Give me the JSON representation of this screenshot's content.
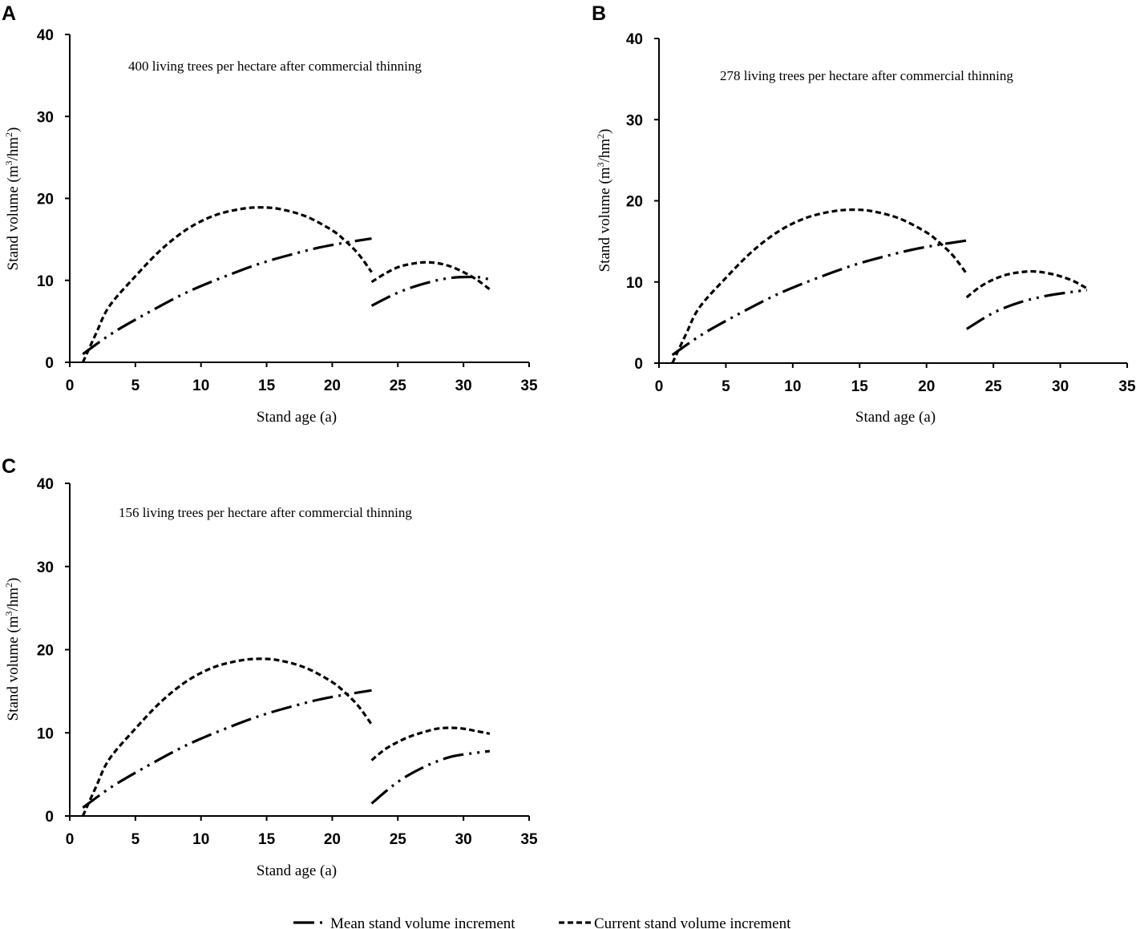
{
  "legend": {
    "mean_label": "Mean stand volume increment",
    "current_label": "Current stand volume increment"
  },
  "chart_data": [
    {
      "type": "line",
      "panel": "A",
      "annotation": "400 living trees per hectare after commercial thinning",
      "xlabel": "Stand age (a)",
      "ylabel": "Stand volume (m3/hm2)",
      "ylabel_parts": {
        "pre": "Stand volume (m",
        "sup1": "3",
        "mid": "/hm",
        "sup2": "2",
        "post": ")"
      },
      "xlim": [
        0,
        35
      ],
      "ylim": [
        0,
        40
      ],
      "xticks": [
        "0",
        "5",
        "10",
        "15",
        "20",
        "25",
        "30",
        "35"
      ],
      "yticks": [
        "0",
        "10",
        "20",
        "30",
        "40"
      ],
      "series": [
        {
          "name": "Mean stand volume increment",
          "style": "mean",
          "segments": [
            {
              "x": [
                1,
                3,
                5,
                8,
                10,
                13,
                15,
                17,
                19,
                21,
                23
              ],
              "y": [
                1,
                3.3,
                5.2,
                7.8,
                9.3,
                11.2,
                12.3,
                13.2,
                14,
                14.6,
                15.1
              ]
            },
            {
              "x": [
                23,
                25,
                27,
                29,
                31,
                32
              ],
              "y": [
                6.9,
                8.5,
                9.6,
                10.3,
                10.4,
                10.1
              ]
            }
          ]
        },
        {
          "name": "Current stand volume increment",
          "style": "current",
          "segments": [
            {
              "x": [
                1,
                2,
                3,
                5,
                7,
                9,
                11,
                13,
                14.5,
                16,
                18,
                20,
                21,
                22,
                23
              ],
              "y": [
                0,
                3.5,
                6.8,
                10.5,
                13.8,
                16.3,
                17.9,
                18.7,
                18.9,
                18.7,
                17.8,
                16.1,
                14.8,
                13.2,
                11
              ]
            },
            {
              "x": [
                23,
                24,
                25,
                26,
                27,
                28,
                29,
                30,
                31,
                32
              ],
              "y": [
                9.8,
                10.8,
                11.6,
                12,
                12.2,
                12.1,
                11.7,
                11,
                10.1,
                8.9
              ]
            }
          ]
        }
      ]
    },
    {
      "type": "line",
      "panel": "B",
      "annotation": "278 living trees per hectare after commercial thinning",
      "xlabel": "Stand age (a)",
      "ylabel": "Stand volume (m3/hm2)",
      "ylabel_parts": {
        "pre": "Stand volume (m",
        "sup1": "3",
        "mid": "/hm",
        "sup2": "2",
        "post": ")"
      },
      "xlim": [
        0,
        35
      ],
      "ylim": [
        0,
        40
      ],
      "xticks": [
        "0",
        "5",
        "10",
        "15",
        "20",
        "25",
        "30",
        "35"
      ],
      "yticks": [
        "0",
        "10",
        "20",
        "30",
        "40"
      ],
      "series": [
        {
          "name": "Mean stand volume increment",
          "style": "mean",
          "segments": [
            {
              "x": [
                1,
                3,
                5,
                8,
                10,
                13,
                15,
                17,
                19,
                21,
                23
              ],
              "y": [
                1,
                3.3,
                5.2,
                7.8,
                9.3,
                11.2,
                12.3,
                13.2,
                14,
                14.6,
                15.1
              ]
            },
            {
              "x": [
                23,
                25,
                27,
                29,
                31,
                32
              ],
              "y": [
                4.2,
                6.2,
                7.5,
                8.3,
                8.8,
                9
              ]
            }
          ]
        },
        {
          "name": "Current stand volume increment",
          "style": "current",
          "segments": [
            {
              "x": [
                1,
                2,
                3,
                5,
                7,
                9,
                11,
                13,
                14.5,
                16,
                18,
                20,
                21,
                22,
                23
              ],
              "y": [
                0,
                3.5,
                6.8,
                10.5,
                13.8,
                16.3,
                17.9,
                18.7,
                18.9,
                18.7,
                17.8,
                16.1,
                14.8,
                13.2,
                11
              ]
            },
            {
              "x": [
                23,
                24,
                25,
                26,
                27,
                28,
                29,
                30,
                31,
                32
              ],
              "y": [
                8.1,
                9.4,
                10.3,
                10.9,
                11.2,
                11.3,
                11.1,
                10.7,
                10.1,
                9.2
              ]
            }
          ]
        }
      ]
    },
    {
      "type": "line",
      "panel": "C",
      "annotation": "156 living trees per hectare after commercial thinning",
      "xlabel": "Stand age (a)",
      "ylabel": "Stand volume (m3/hm2)",
      "ylabel_parts": {
        "pre": "Stand volume (m",
        "sup1": "3",
        "mid": "/hm",
        "sup2": "2",
        "post": ")"
      },
      "xlim": [
        0,
        35
      ],
      "ylim": [
        0,
        40
      ],
      "xticks": [
        "0",
        "5",
        "10",
        "15",
        "20",
        "25",
        "30",
        "35"
      ],
      "yticks": [
        "0",
        "10",
        "20",
        "30",
        "40"
      ],
      "series": [
        {
          "name": "Mean stand volume increment",
          "style": "mean",
          "segments": [
            {
              "x": [
                1,
                3,
                5,
                8,
                10,
                13,
                15,
                17,
                19,
                21,
                23
              ],
              "y": [
                1,
                3.3,
                5.2,
                7.8,
                9.3,
                11.2,
                12.3,
                13.2,
                14,
                14.6,
                15.1
              ]
            },
            {
              "x": [
                23,
                25,
                27,
                29,
                31,
                32
              ],
              "y": [
                1.5,
                4.1,
                5.9,
                7.1,
                7.6,
                7.8
              ]
            }
          ]
        },
        {
          "name": "Current stand volume increment",
          "style": "current",
          "segments": [
            {
              "x": [
                1,
                2,
                3,
                5,
                7,
                9,
                11,
                13,
                14.5,
                16,
                18,
                20,
                21,
                22,
                23
              ],
              "y": [
                0,
                3.5,
                6.8,
                10.5,
                13.8,
                16.3,
                17.9,
                18.7,
                18.9,
                18.7,
                17.8,
                16.1,
                14.8,
                13.2,
                11
              ]
            },
            {
              "x": [
                23,
                24,
                25,
                26,
                27,
                28,
                29,
                30,
                31,
                32
              ],
              "y": [
                6.7,
                8,
                8.9,
                9.6,
                10.1,
                10.5,
                10.6,
                10.5,
                10.2,
                9.9
              ]
            }
          ]
        }
      ]
    }
  ]
}
